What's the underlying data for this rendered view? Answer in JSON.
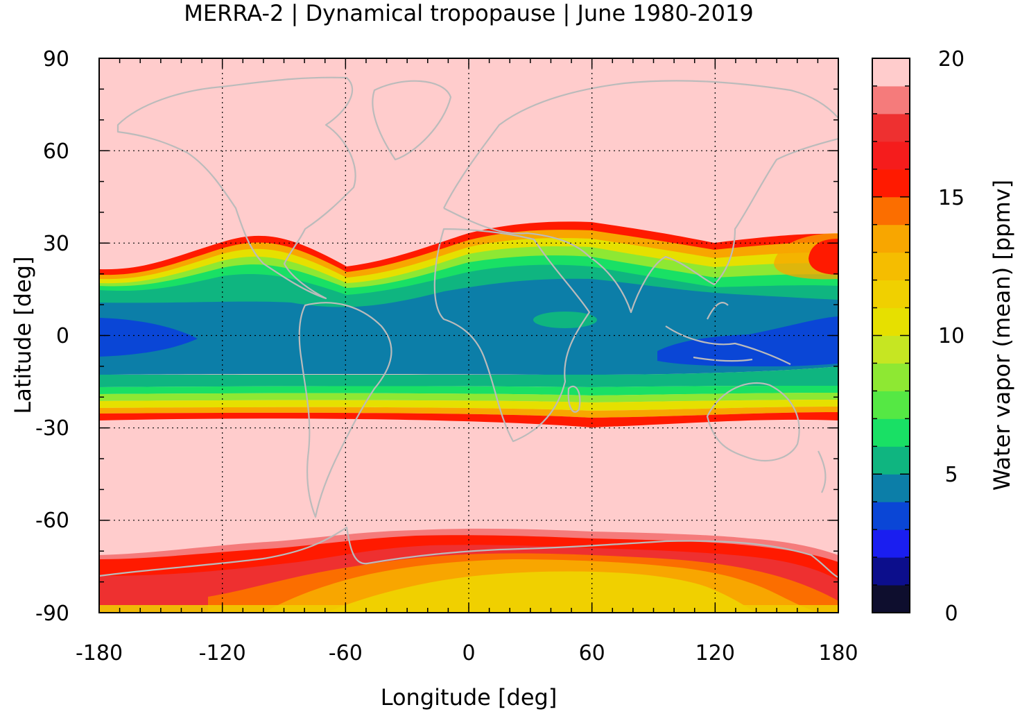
{
  "chart_data": {
    "type": "heatmap",
    "title": "MERRA-2 | Dynamical tropopause | June 1980-2019",
    "xlabel": "Longitude [deg]",
    "ylabel": "Latitude [deg]",
    "xlim": [
      -180,
      180
    ],
    "ylim": [
      -90,
      90
    ],
    "xticks": [
      -180,
      -120,
      -60,
      0,
      60,
      120,
      180
    ],
    "yticks": [
      90,
      60,
      30,
      0,
      -30,
      -60,
      -90
    ],
    "grid": true,
    "colorbar": {
      "label": "Water vapor (mean) [ppmv]",
      "range": [
        0,
        20
      ],
      "ticks": [
        20,
        15,
        10,
        5,
        0
      ],
      "levels": [
        {
          "from": 0,
          "to": 1,
          "color": "#0e0e2e"
        },
        {
          "from": 1,
          "to": 2,
          "color": "#0c0e8c"
        },
        {
          "from": 2,
          "to": 3,
          "color": "#1a1ef0"
        },
        {
          "from": 3,
          "to": 4,
          "color": "#0a46d6"
        },
        {
          "from": 4,
          "to": 5,
          "color": "#0c7ea8"
        },
        {
          "from": 5,
          "to": 6,
          "color": "#0fb580"
        },
        {
          "from": 6,
          "to": 7,
          "color": "#19e065"
        },
        {
          "from": 7,
          "to": 8,
          "color": "#55e844"
        },
        {
          "from": 8,
          "to": 9,
          "color": "#8ee833"
        },
        {
          "from": 9,
          "to": 10,
          "color": "#c6e622"
        },
        {
          "from": 10,
          "to": 11,
          "color": "#e6e000"
        },
        {
          "from": 11,
          "to": 12,
          "color": "#f0d000"
        },
        {
          "from": 12,
          "to": 13,
          "color": "#f5bd00"
        },
        {
          "from": 13,
          "to": 14,
          "color": "#f8a600"
        },
        {
          "from": 14,
          "to": 15,
          "color": "#fb6e00"
        },
        {
          "from": 15,
          "to": 16,
          "color": "#ff1a00"
        },
        {
          "from": 16,
          "to": 17,
          "color": "#f51c1c"
        },
        {
          "from": 17,
          "to": 18,
          "color": "#ee3030"
        },
        {
          "from": 18,
          "to": 19,
          "color": "#f57b7b"
        },
        {
          "from": 19,
          "to": 20,
          "color": "#ffcccc"
        }
      ]
    },
    "bands": {
      "nh_edge_lat": [
        {
          "lon": -180,
          "lat": 22
        },
        {
          "lon": -150,
          "lat": 24
        },
        {
          "lon": -120,
          "lat": 31
        },
        {
          "lon": -100,
          "lat": 33
        },
        {
          "lon": -60,
          "lat": 23
        },
        {
          "lon": 0,
          "lat": 31
        },
        {
          "lon": 30,
          "lat": 34
        },
        {
          "lon": 60,
          "lat": 37
        },
        {
          "lon": 100,
          "lat": 33
        },
        {
          "lon": 150,
          "lat": 32
        },
        {
          "lon": 180,
          "lat": 31
        }
      ],
      "sh_edge_lat": [
        {
          "lon": -180,
          "lat": -27
        },
        {
          "lon": -90,
          "lat": -25
        },
        {
          "lon": 0,
          "lat": -27
        },
        {
          "lon": 60,
          "lat": -29
        },
        {
          "lon": 120,
          "lat": -26
        },
        {
          "lon": 180,
          "lat": -27
        }
      ],
      "antarctic_edge_lat": [
        {
          "lon": -180,
          "lat": -71
        },
        {
          "lon": -120,
          "lat": -70
        },
        {
          "lon": -60,
          "lat": -65
        },
        {
          "lon": 0,
          "lat": -63
        },
        {
          "lon": 60,
          "lat": -64
        },
        {
          "lon": 120,
          "lat": -67
        },
        {
          "lon": 180,
          "lat": -72
        }
      ]
    },
    "coastline_color": "#bbbbbb"
  }
}
